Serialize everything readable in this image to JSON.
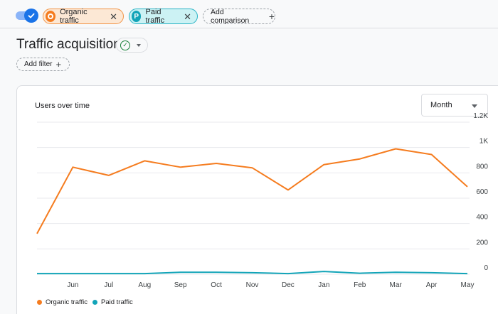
{
  "topbar": {
    "chips": [
      {
        "letter": "",
        "label": "Organic traffic",
        "color": "#f57c1f"
      },
      {
        "letter": "P",
        "label": "Paid traffic",
        "color": "#12a4b8"
      }
    ],
    "add_comparison_label": "Add comparison",
    "toggle_on": true
  },
  "page": {
    "title": "Traffic acquisition",
    "add_filter_label": "Add filter"
  },
  "card": {
    "title": "Users over time",
    "period_select": "Month"
  },
  "chart_data": {
    "type": "line",
    "title": "Users over time",
    "categories": [
      "",
      "Jun",
      "Jul",
      "Aug",
      "Sep",
      "Oct",
      "Nov",
      "Dec",
      "Jan",
      "Feb",
      "Mar",
      "Apr",
      "May"
    ],
    "x_tick_labels": [
      "Jun",
      "Jul",
      "Aug",
      "Sep",
      "Oct",
      "Nov",
      "Dec",
      "Jan",
      "Feb",
      "Mar",
      "Apr",
      "May"
    ],
    "y_ticks": [
      0,
      200,
      400,
      600,
      800,
      1000,
      1200
    ],
    "y_tick_labels": [
      "0",
      "200",
      "400",
      "600",
      "800",
      "1K",
      "1.2K"
    ],
    "ylim": [
      0,
      1200
    ],
    "y_axis_position": "right",
    "grid": true,
    "legend_position": "bottom-left",
    "series": [
      {
        "name": "Organic traffic",
        "color": "#f57c1f",
        "values": [
          320,
          845,
          780,
          895,
          845,
          875,
          840,
          665,
          865,
          910,
          990,
          945,
          690
        ]
      },
      {
        "name": "Paid traffic",
        "color": "#12a4b8",
        "values": [
          5,
          5,
          5,
          5,
          15,
          15,
          12,
          5,
          22,
          8,
          15,
          12,
          5
        ]
      }
    ]
  }
}
